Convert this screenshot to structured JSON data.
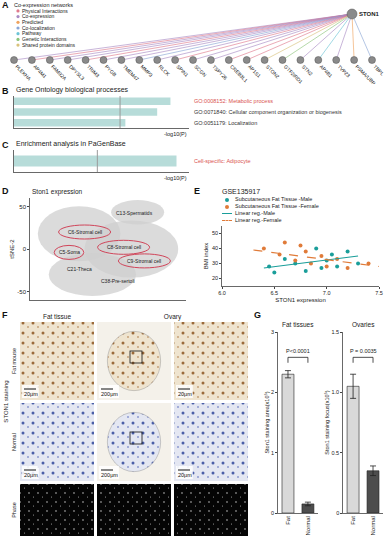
{
  "diagrams": {
    "A": {
      "panel": "A",
      "key_title": "Co-expression networks",
      "key": [
        {
          "label": "Physical Interactions",
          "color": "#e07a8d"
        },
        {
          "label": "Co-expression",
          "color": "#a98bc4"
        },
        {
          "label": "Predicted",
          "color": "#f0a35e"
        },
        {
          "label": "Co-localization",
          "color": "#8aa6d6"
        },
        {
          "label": "Pathway",
          "color": "#6cc4d6"
        },
        {
          "label": "Genetic Interactions",
          "color": "#8cc47a"
        },
        {
          "label": "Shared protein domains",
          "color": "#d9c27a"
        }
      ],
      "center": "STON1",
      "nodes": [
        {
          "label": "PLEKHA",
          "link": "Co-expression"
        },
        {
          "label": "AP4M1",
          "link": "Physical Interactions"
        },
        {
          "label": "FAM92A",
          "link": "Co-expression"
        },
        {
          "label": "DPYSL3",
          "link": "Co-expression"
        },
        {
          "label": "TRIM3",
          "link": "Physical Interactions"
        },
        {
          "label": "PYGB",
          "link": "Co-expression"
        },
        {
          "label": "TMEM47",
          "link": "Co-expression"
        },
        {
          "label": "MMP3",
          "link": "Co-localization"
        },
        {
          "label": "RLCK",
          "link": "Co-expression"
        },
        {
          "label": "SPIN1",
          "link": "Physical Interactions"
        },
        {
          "label": "SCGN",
          "link": "Co-expression"
        },
        {
          "label": "TSPY26",
          "link": "Co-expression"
        },
        {
          "label": "CREB3L1",
          "link": "Physical Interactions"
        },
        {
          "label": "AP1S1",
          "link": "Physical Interactions"
        },
        {
          "label": "STON2",
          "link": "Shared protein domains"
        },
        {
          "label": "GTF2IRD1",
          "link": "Genetic Interactions"
        },
        {
          "label": "STN2",
          "link": "Co-expression"
        },
        {
          "label": "AP4B1",
          "link": "Pathway"
        },
        {
          "label": "TVP23",
          "link": "Co-expression"
        },
        {
          "label": "PSMA/UBP",
          "link": "Predicted"
        },
        {
          "label": "TBPL",
          "link": "Co-localization"
        }
      ]
    },
    "F": {
      "panel": "F",
      "column_heads": [
        "Fat tissue",
        "Ovary"
      ],
      "row_group": "STON1 staining",
      "rows": [
        "Fat mouse",
        "Normal",
        "Phase"
      ],
      "scale_bars": [
        "20μm",
        "200μm",
        "20μm"
      ]
    }
  },
  "chart_data": [
    {
      "panel": "B",
      "type": "bar",
      "orientation": "horizontal",
      "title": "Gene Ontology biological processes",
      "categories": [
        "GO:0008152: Metabolic process",
        "GO:0071840: Cellular component organization or biogenesis",
        "GO:0051179: Localization"
      ],
      "values": [
        2.95,
        2.7,
        2.1
      ],
      "color": "#b7dcd9",
      "label_colors": [
        "#d9534f",
        "#333333",
        "#333333"
      ],
      "x_label": "-log10(P)",
      "xlim": [
        0,
        3.3
      ],
      "threshold": 2,
      "tick_labels": false,
      "grid": false
    },
    {
      "panel": "C",
      "type": "bar",
      "orientation": "horizontal",
      "title": "Enrichment analysis in PaGenBase",
      "categories": [
        "Cell-specific: Adipocyte"
      ],
      "values": [
        3.9
      ],
      "color": "#b7dcd9",
      "label_colors": [
        "#d9534f"
      ],
      "x_label": "-log10(P)",
      "xlim": [
        0,
        4.2
      ],
      "threshold": 2,
      "tick_labels": false,
      "grid": false
    },
    {
      "panel": "D",
      "type": "scatter",
      "title": "Ston1 expression",
      "y_label": "tSNE-2",
      "xlim": [
        -60,
        60
      ],
      "ylim": [
        -60,
        60
      ],
      "yticks": [
        -50,
        0,
        50
      ],
      "tick_labels": "y",
      "grid": false,
      "annotations": [
        {
          "text": "C13-Spermatids",
          "x": 20,
          "y": 42
        },
        {
          "text": "C6-Stromal cell",
          "x": -18,
          "y": 20,
          "color": "#d0455a"
        },
        {
          "text": "C8-Stromal cell",
          "x": 12,
          "y": 2,
          "color": "#d0455a"
        },
        {
          "text": "C5-Soma",
          "x": -30,
          "y": -4,
          "color": "#d0455a"
        },
        {
          "text": "C9-Stromal cell",
          "x": 28,
          "y": -14,
          "color": "#d0455a"
        },
        {
          "text": "C21-Theca",
          "x": -22,
          "y": -24
        },
        {
          "text": "C38-Pre-sertoli",
          "x": 8,
          "y": -38
        }
      ]
    },
    {
      "panel": "E",
      "type": "scatter",
      "title": "GSE135917",
      "x_label": "STON1 expression",
      "y_label": "BMI index",
      "xlim": [
        6,
        7.5
      ],
      "xticks": [
        {
          "value": 6,
          "label": "6.0"
        },
        6.5,
        {
          "value": 7,
          "label": "7.0"
        },
        7.5
      ],
      "ylim": [
        15,
        55
      ],
      "yticks": [
        20,
        30,
        40,
        50
      ],
      "grid": false,
      "series": [
        {
          "name": "Subcutaneous Fat Tissue -Male",
          "type": "scatter",
          "marker": "circle",
          "color": "#1a9e9a",
          "x": [
            6.45,
            6.5,
            6.6,
            6.7,
            6.8,
            6.9,
            6.95,
            7.0,
            7.05,
            7.1,
            7.2,
            7.3
          ],
          "values": [
            28,
            24,
            33,
            30,
            25,
            40,
            27,
            32,
            36,
            28,
            38,
            30
          ]
        },
        {
          "name": "Subcutaneous Fat Tissue -Female",
          "type": "scatter",
          "marker": "circle",
          "color": "#e07b39",
          "x": [
            6.4,
            6.55,
            6.6,
            6.7,
            6.75,
            6.8,
            6.85,
            6.95,
            7.0,
            7.1,
            7.2,
            7.4
          ],
          "values": [
            40,
            36,
            44,
            32,
            42,
            38,
            30,
            35,
            28,
            33,
            27,
            30
          ]
        },
        {
          "name": "Linear reg.-Male",
          "type": "line",
          "line_style": "solid",
          "color": "#1a9e9a",
          "x": [
            6.4,
            7.3
          ],
          "values": [
            27,
            35
          ]
        },
        {
          "name": "Linear reg.-Female",
          "type": "line",
          "line_style": "dashed",
          "color": "#e07b39",
          "x": [
            6.3,
            7.5
          ],
          "values": [
            39,
            28
          ]
        }
      ]
    },
    {
      "panel": "G",
      "type": "bar",
      "title": "Fat tissues",
      "categories": [
        "Fat",
        "Normal"
      ],
      "values": [
        2.3,
        0.15
      ],
      "errors": [
        0.06,
        0.03
      ],
      "colors": [
        "#d9d9d9",
        "#4d4d4d"
      ],
      "ylim": [
        0,
        3
      ],
      "yticks": [
        0,
        1,
        2,
        3
      ],
      "y_label": "Ston1 staining area(x10⁵)",
      "annotations": [
        {
          "text": "P<0.0001"
        }
      ]
    },
    {
      "type": "bar",
      "title": "Ovaries",
      "categories": [
        "Fat",
        "Normal"
      ],
      "values": [
        1.05,
        0.35
      ],
      "errors": [
        0.1,
        0.04
      ],
      "colors": [
        "#d9d9d9",
        "#4d4d4d"
      ],
      "ylim": [
        0,
        1.5
      ],
      "yticks": [
        0,
        0.5,
        {
          "value": 1,
          "label": "1.0"
        },
        1.5
      ],
      "y_label": "Ston1 staining focus(x10⁵)",
      "annotations": [
        {
          "text": "P = 0.0035"
        }
      ]
    }
  ]
}
